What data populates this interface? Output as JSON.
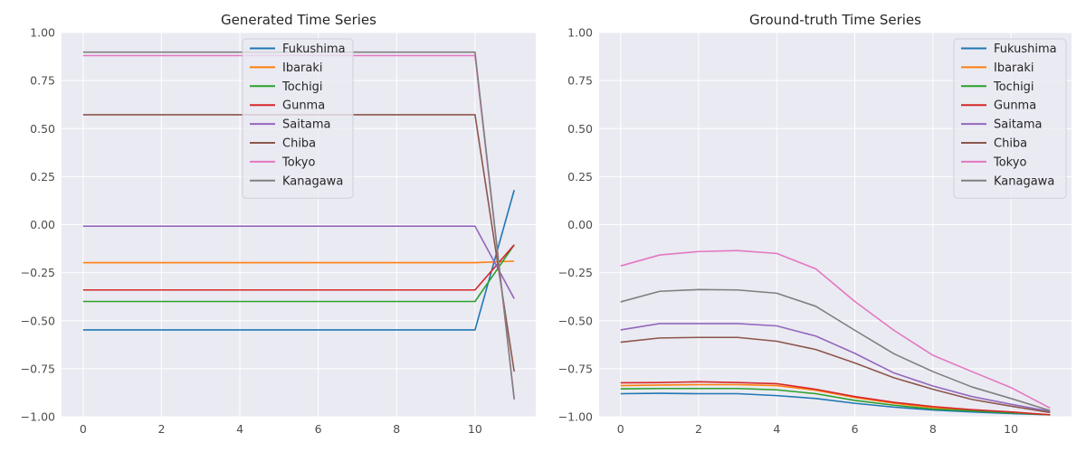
{
  "chart_data": [
    {
      "type": "line",
      "title": "Generated Time Series",
      "xlabel": "",
      "ylabel": "",
      "xlim": [
        -0.55,
        11.55
      ],
      "ylim": [
        -1.0,
        1.0
      ],
      "xticks": [
        0,
        2,
        4,
        6,
        8,
        10
      ],
      "yticks": [
        -1.0,
        -0.75,
        -0.5,
        -0.25,
        0.0,
        0.25,
        0.5,
        0.75,
        1.0
      ],
      "xtick_labels": [
        "0",
        "2",
        "4",
        "6",
        "8",
        "10"
      ],
      "ytick_labels": [
        "−1.00",
        "−0.75",
        "−0.50",
        "−0.25",
        "0.00",
        "0.25",
        "0.50",
        "0.75",
        "1.00"
      ],
      "grid": true,
      "legend_position": "top-center",
      "x": [
        0,
        1,
        2,
        3,
        4,
        5,
        6,
        7,
        8,
        9,
        10,
        11
      ],
      "series": [
        {
          "name": "Fukushima",
          "color": "#1f77b4",
          "values": [
            -0.548,
            -0.548,
            -0.548,
            -0.548,
            -0.548,
            -0.548,
            -0.548,
            -0.548,
            -0.548,
            -0.548,
            -0.548,
            0.18
          ]
        },
        {
          "name": "Ibaraki",
          "color": "#ff7f0e",
          "values": [
            -0.198,
            -0.198,
            -0.198,
            -0.198,
            -0.198,
            -0.198,
            -0.198,
            -0.198,
            -0.198,
            -0.198,
            -0.198,
            -0.19
          ]
        },
        {
          "name": "Tochigi",
          "color": "#2ca02c",
          "values": [
            -0.4,
            -0.4,
            -0.4,
            -0.4,
            -0.4,
            -0.4,
            -0.4,
            -0.4,
            -0.4,
            -0.4,
            -0.4,
            -0.105
          ]
        },
        {
          "name": "Gunma",
          "color": "#d62728",
          "values": [
            -0.34,
            -0.34,
            -0.34,
            -0.34,
            -0.34,
            -0.34,
            -0.34,
            -0.34,
            -0.34,
            -0.34,
            -0.34,
            -0.105
          ]
        },
        {
          "name": "Saitama",
          "color": "#9467bd",
          "values": [
            -0.008,
            -0.008,
            -0.008,
            -0.008,
            -0.008,
            -0.008,
            -0.008,
            -0.008,
            -0.008,
            -0.008,
            -0.008,
            -0.385
          ]
        },
        {
          "name": "Chiba",
          "color": "#8c564b",
          "values": [
            0.572,
            0.572,
            0.572,
            0.572,
            0.572,
            0.572,
            0.572,
            0.572,
            0.572,
            0.572,
            0.572,
            -0.765
          ]
        },
        {
          "name": "Tokyo",
          "color": "#e377c2",
          "values": [
            0.88,
            0.88,
            0.88,
            0.88,
            0.88,
            0.88,
            0.88,
            0.88,
            0.88,
            0.88,
            0.88,
            -0.905
          ]
        },
        {
          "name": "Kanagawa",
          "color": "#7f7f7f",
          "values": [
            0.898,
            0.898,
            0.898,
            0.898,
            0.898,
            0.898,
            0.898,
            0.898,
            0.898,
            0.898,
            0.898,
            -0.91
          ]
        }
      ]
    },
    {
      "type": "line",
      "title": "Ground-truth Time Series",
      "xlabel": "",
      "ylabel": "",
      "xlim": [
        -0.55,
        11.55
      ],
      "ylim": [
        -1.0,
        1.0
      ],
      "xticks": [
        0,
        2,
        4,
        6,
        8,
        10
      ],
      "yticks": [
        -1.0,
        -0.75,
        -0.5,
        -0.25,
        0.0,
        0.25,
        0.5,
        0.75,
        1.0
      ],
      "xtick_labels": [
        "0",
        "2",
        "4",
        "6",
        "8",
        "10"
      ],
      "ytick_labels": [
        "−1.00",
        "−0.75",
        "−0.50",
        "−0.25",
        "0.00",
        "0.25",
        "0.50",
        "0.75",
        "1.00"
      ],
      "grid": true,
      "legend_position": "top-right",
      "x": [
        0,
        1,
        2,
        3,
        4,
        5,
        6,
        7,
        8,
        9,
        10,
        11
      ],
      "series": [
        {
          "name": "Fukushima",
          "color": "#1f77b4",
          "values": [
            -0.88,
            -0.878,
            -0.88,
            -0.88,
            -0.89,
            -0.905,
            -0.93,
            -0.95,
            -0.965,
            -0.975,
            -0.983,
            -0.99
          ]
        },
        {
          "name": "Ibaraki",
          "color": "#ff7f0e",
          "values": [
            -0.838,
            -0.835,
            -0.833,
            -0.833,
            -0.838,
            -0.862,
            -0.9,
            -0.93,
            -0.953,
            -0.968,
            -0.978,
            -0.99
          ]
        },
        {
          "name": "Tochigi",
          "color": "#2ca02c",
          "values": [
            -0.855,
            -0.853,
            -0.853,
            -0.853,
            -0.86,
            -0.88,
            -0.915,
            -0.94,
            -0.96,
            -0.97,
            -0.98,
            -0.99
          ]
        },
        {
          "name": "Gunma",
          "color": "#d62728",
          "values": [
            -0.823,
            -0.822,
            -0.818,
            -0.822,
            -0.828,
            -0.857,
            -0.895,
            -0.925,
            -0.947,
            -0.963,
            -0.975,
            -0.99
          ]
        },
        {
          "name": "Saitama",
          "color": "#9467bd",
          "values": [
            -0.548,
            -0.515,
            -0.515,
            -0.515,
            -0.527,
            -0.58,
            -0.67,
            -0.772,
            -0.84,
            -0.895,
            -0.935,
            -0.972
          ]
        },
        {
          "name": "Chiba",
          "color": "#8c564b",
          "values": [
            -0.612,
            -0.59,
            -0.587,
            -0.587,
            -0.607,
            -0.65,
            -0.72,
            -0.797,
            -0.857,
            -0.91,
            -0.945,
            -0.978
          ]
        },
        {
          "name": "Tokyo",
          "color": "#e377c2",
          "values": [
            -0.215,
            -0.158,
            -0.14,
            -0.135,
            -0.15,
            -0.23,
            -0.4,
            -0.55,
            -0.68,
            -0.765,
            -0.848,
            -0.955
          ]
        },
        {
          "name": "Kanagawa",
          "color": "#7f7f7f",
          "values": [
            -0.402,
            -0.347,
            -0.338,
            -0.34,
            -0.357,
            -0.425,
            -0.55,
            -0.672,
            -0.765,
            -0.845,
            -0.905,
            -0.968
          ]
        }
      ]
    }
  ]
}
